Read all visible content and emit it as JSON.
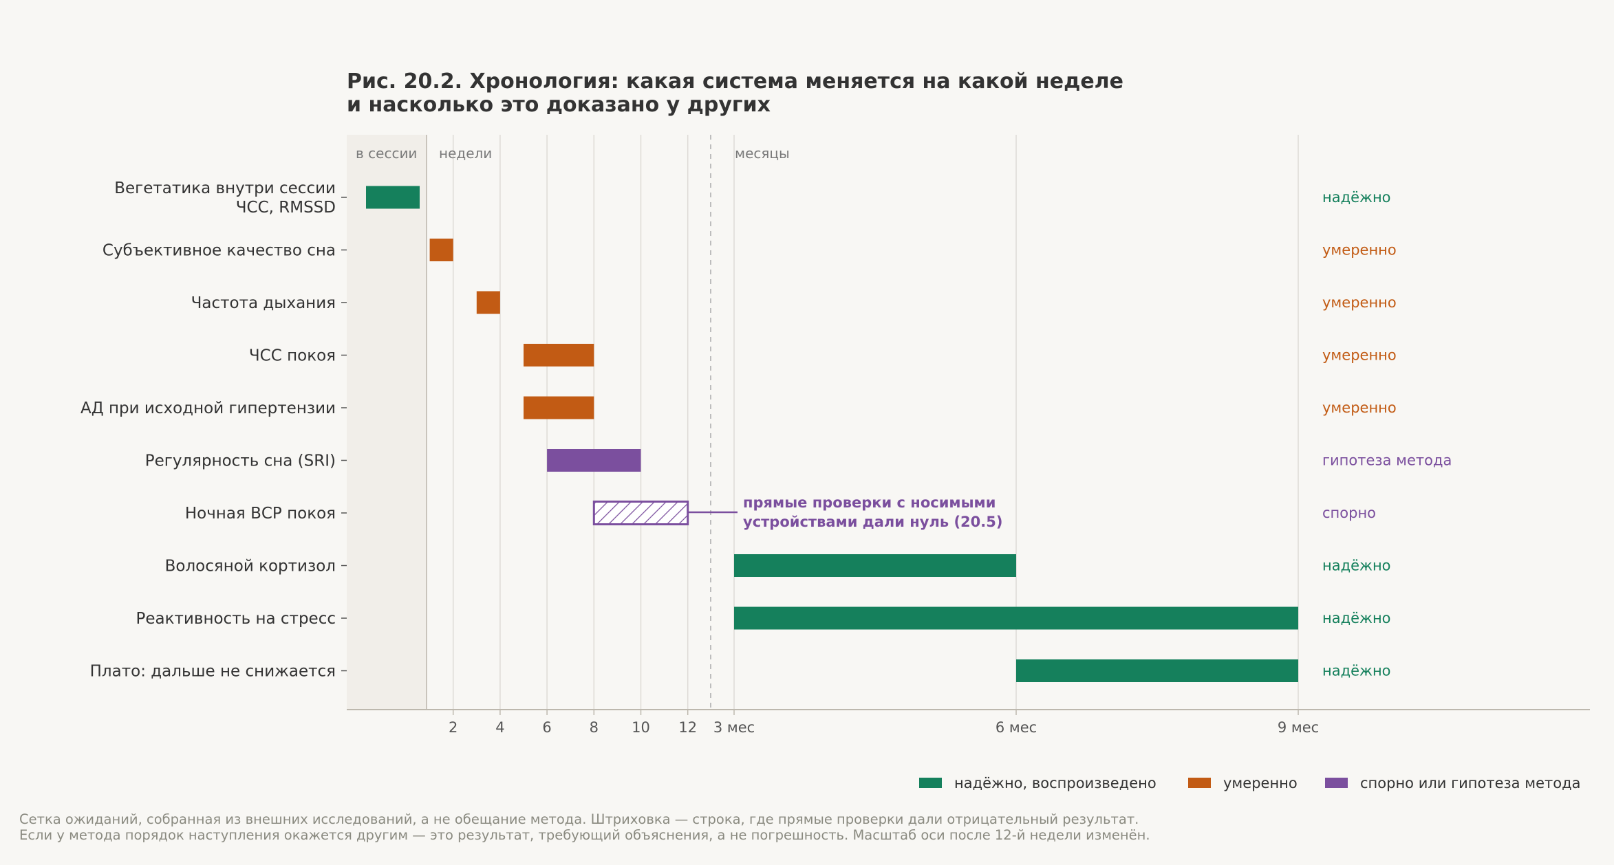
{
  "figure": {
    "title_lines": [
      "Рис. 20.2. Хронология: какая система меняется на какой неделе",
      "и насколько это доказано у других"
    ],
    "zones": {
      "session": "в сессии",
      "weeks": "недели",
      "months": "месяцы"
    },
    "footnote_lines": [
      "Сетка ожиданий, собранная из внешних исследований, а не обещание метода. Штриховка — строка, где прямые проверки дали отрицательный результат.",
      "Если у метода порядок наступления окажется другим — это результат, требующий объяснения, а не погрешность. Масштаб оси после 12-й недели изменён."
    ]
  },
  "colors": {
    "reliable": "#15805c",
    "moderate": "#c25b14",
    "disputed": "#7b4f9e",
    "background": "#f8f7f4",
    "session_shade": "#f1eee9"
  },
  "chart_data": {
    "type": "timeline",
    "x_axis": {
      "scale": "piecewise: session | weeks 0–12 | months 3–9+",
      "week_ticks": [
        "2",
        "4",
        "6",
        "8",
        "10",
        "12"
      ],
      "month_ticks": [
        "3 мес",
        "6 мес",
        "9 мес"
      ]
    },
    "rows": [
      {
        "label": [
          "Вегетатика внутри сессии",
          "ЧСС, RMSSD"
        ],
        "start": "session",
        "end": "session",
        "evidence": "надёжно",
        "category": "reliable"
      },
      {
        "label": [
          "Субъективное качество сна"
        ],
        "start_week": 1,
        "end_week": 2,
        "evidence": "умеренно",
        "category": "moderate"
      },
      {
        "label": [
          "Частота дыхания"
        ],
        "start_week": 3,
        "end_week": 4,
        "evidence": "умеренно",
        "category": "moderate"
      },
      {
        "label": [
          "ЧСС покоя"
        ],
        "start_week": 5,
        "end_week": 8,
        "evidence": "умеренно",
        "category": "moderate"
      },
      {
        "label": [
          "АД при исходной гипертензии"
        ],
        "start_week": 5,
        "end_week": 8,
        "evidence": "умеренно",
        "category": "moderate"
      },
      {
        "label": [
          "Регулярность сна (SRI)"
        ],
        "start_week": 6,
        "end_week": 10,
        "evidence": "гипотеза метода",
        "category": "disputed"
      },
      {
        "label": [
          "Ночная ВСР покоя"
        ],
        "start_week": 8,
        "end_week": 12,
        "evidence": "спорно",
        "category": "disputed",
        "hatched": true
      },
      {
        "label": [
          "Волосяной кортизол"
        ],
        "start_month": 3,
        "end_month": 6,
        "evidence": "надёжно",
        "category": "reliable"
      },
      {
        "label": [
          "Реактивность на стресс"
        ],
        "start_month": 3,
        "end_month": 9,
        "evidence": "надёжно",
        "category": "reliable"
      },
      {
        "label": [
          "Плато: дальше не снижается"
        ],
        "start_month": 6,
        "end_month": 9,
        "evidence": "надёжно",
        "category": "reliable"
      }
    ],
    "annotation": {
      "row": "Ночная ВСР покоя",
      "lines": [
        "прямые проверки с носимыми",
        "устройствами дали нуль (20.5)"
      ]
    },
    "legend": [
      {
        "label": "надёжно, воспроизведено",
        "category": "reliable"
      },
      {
        "label": "умеренно",
        "category": "moderate"
      },
      {
        "label": "спорно или гипотеза метода",
        "category": "disputed"
      }
    ],
    "legend_position": "bottom-right",
    "grid": "vertical"
  }
}
